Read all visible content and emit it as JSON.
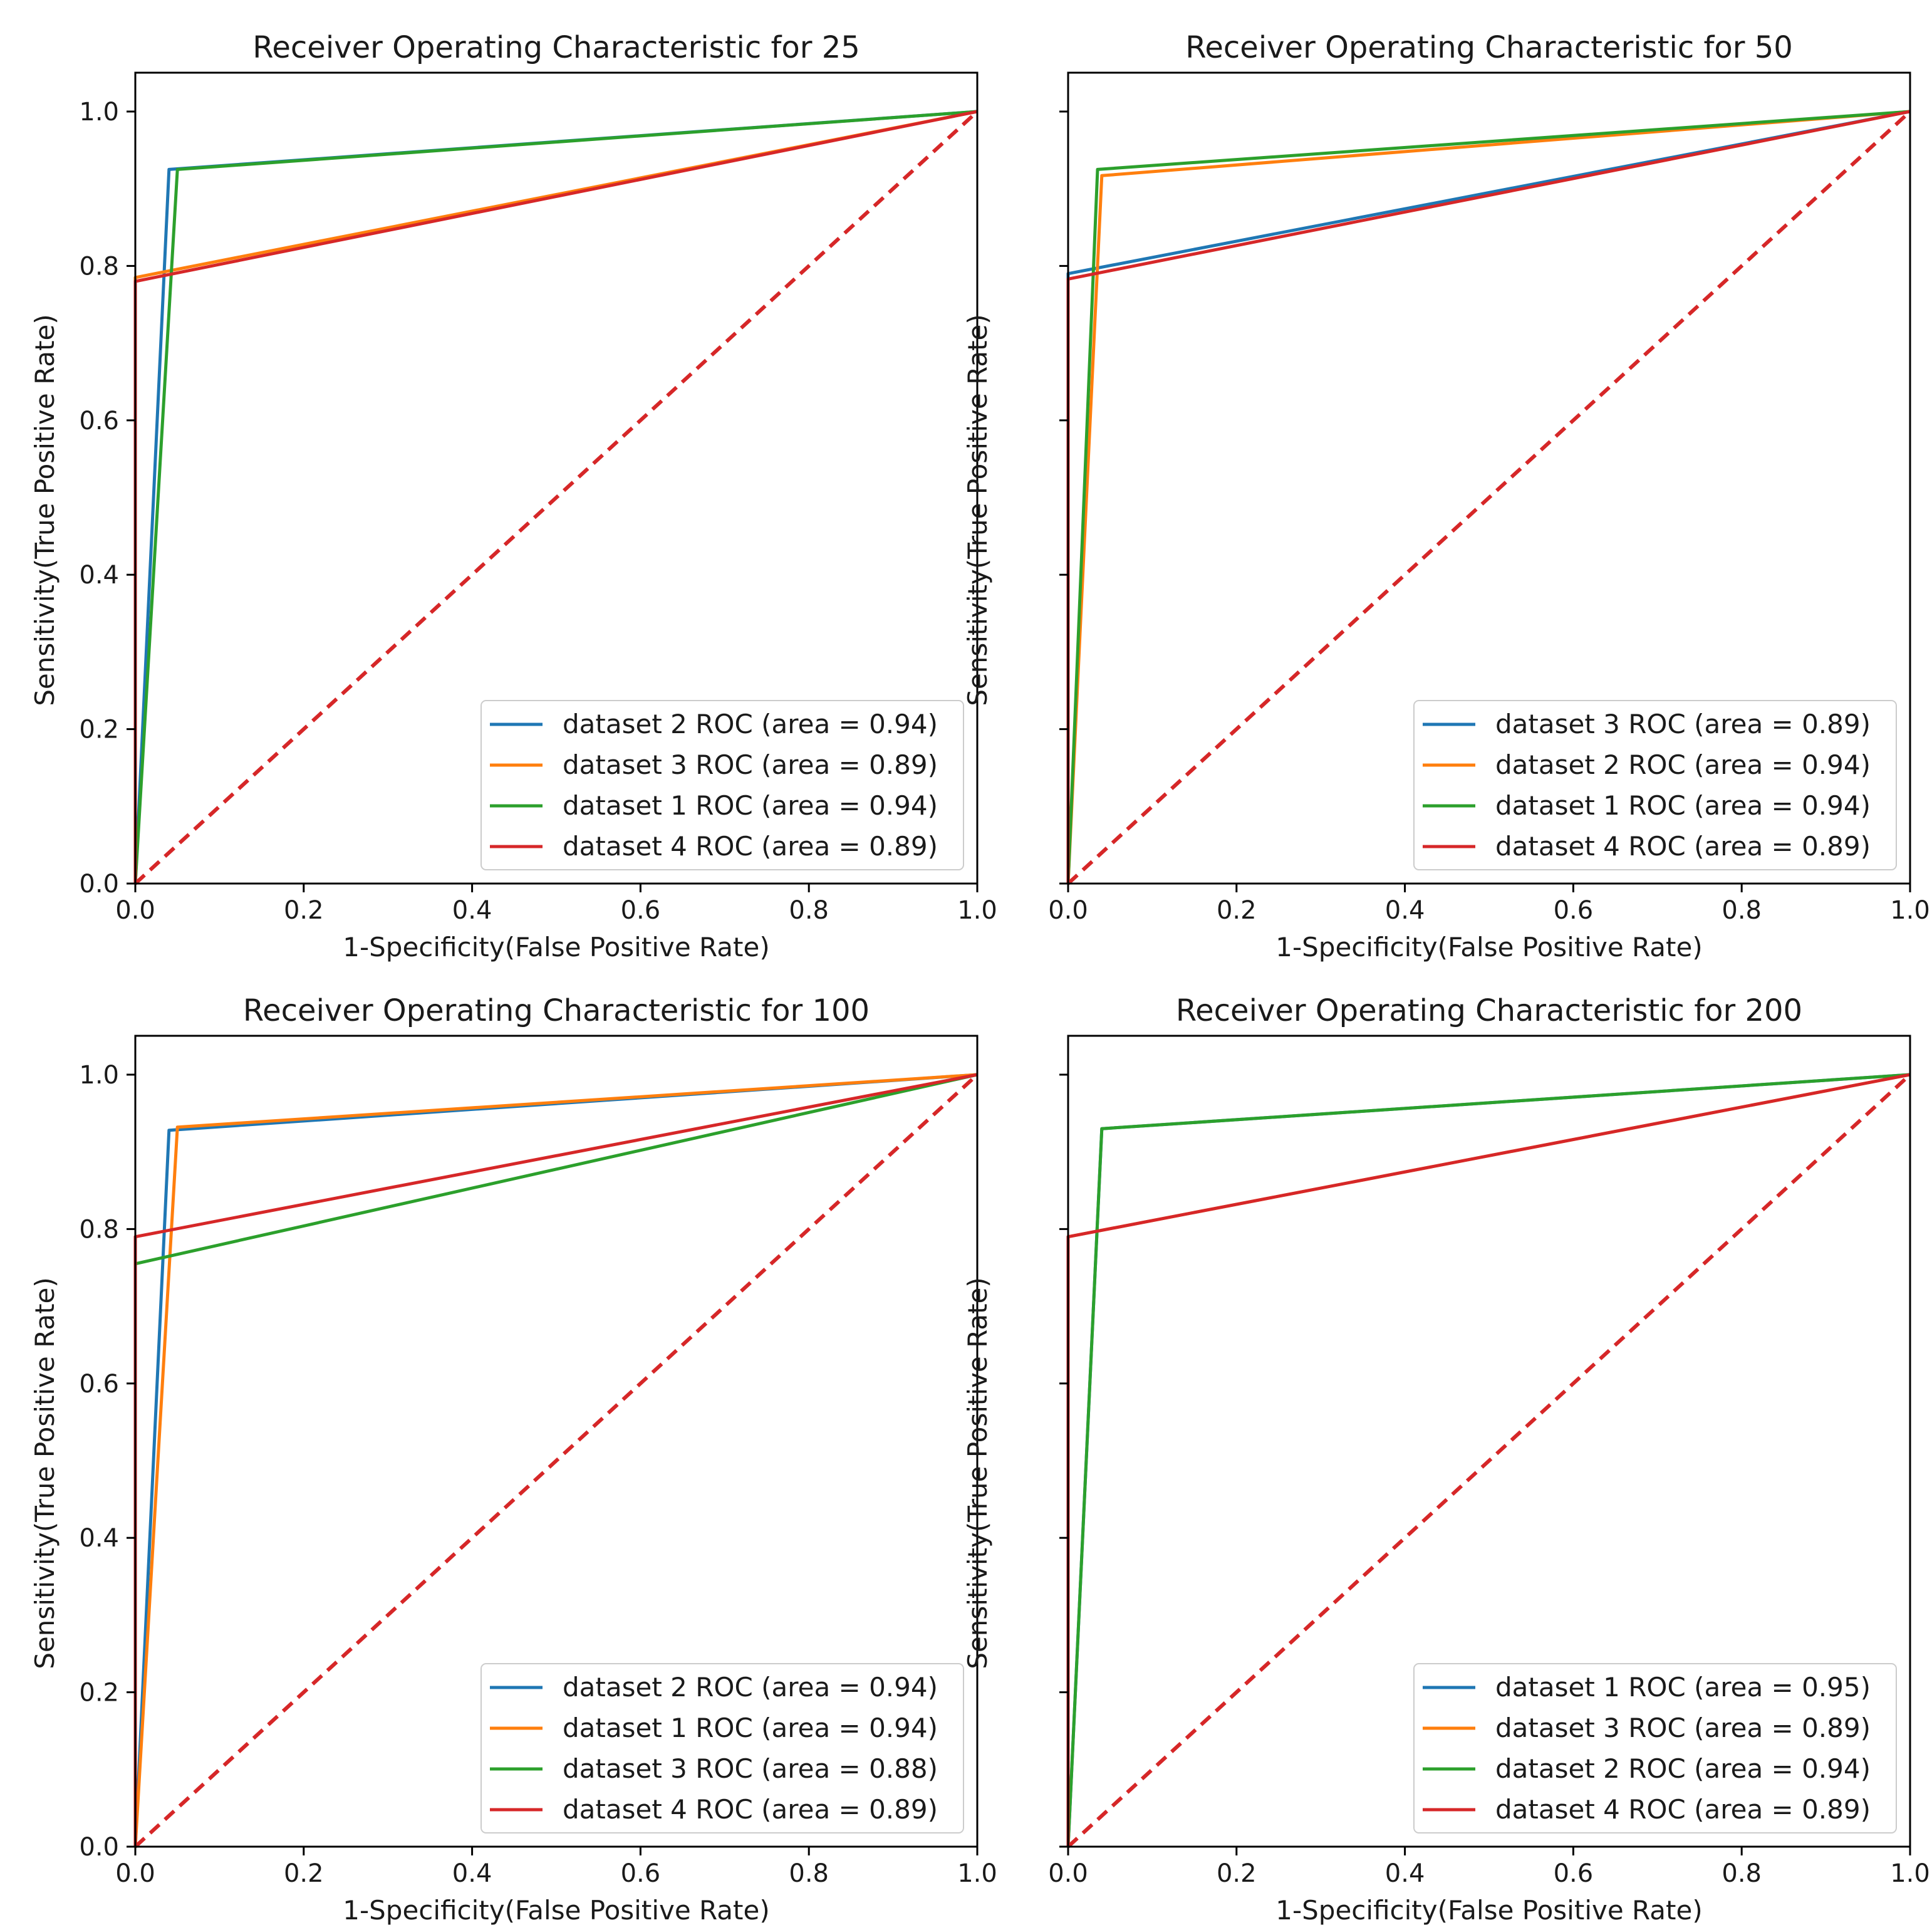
{
  "chart_data": [
    {
      "type": "line",
      "title": "Receiver Operating Characteristic for 25",
      "xlabel": "1-Specificity(False Positive Rate)",
      "ylabel": "Sensitivity(True Positive Rate)",
      "xlim": [
        0,
        1
      ],
      "ylim": [
        0,
        1
      ],
      "xticks": [
        "0.0",
        "0.2",
        "0.4",
        "0.6",
        "0.8",
        "1.0"
      ],
      "yticks": [
        "0.0",
        "0.2",
        "0.4",
        "0.6",
        "0.8",
        "1.0"
      ],
      "show_y_tick_labels": true,
      "legend_position": "lower-right",
      "series": [
        {
          "name": "dataset 2 ROC (area = 0.94)",
          "color": "#1f77b4",
          "x": [
            0,
            0.04,
            1
          ],
          "y": [
            0,
            0.925,
            1
          ]
        },
        {
          "name": "dataset 3 ROC (area = 0.89)",
          "color": "#ff7f0e",
          "x": [
            0,
            0,
            1
          ],
          "y": [
            0,
            0.785,
            1
          ]
        },
        {
          "name": "dataset 1 ROC (area = 0.94)",
          "color": "#2ca02c",
          "x": [
            0,
            0.05,
            1
          ],
          "y": [
            0,
            0.925,
            1
          ]
        },
        {
          "name": "dataset 4 ROC (area = 0.89)",
          "color": "#d62728",
          "x": [
            0,
            0,
            1
          ],
          "y": [
            0,
            0.78,
            1
          ]
        }
      ],
      "diagonal": {
        "color": "#d62728",
        "x": [
          0,
          1
        ],
        "y": [
          0,
          1
        ]
      }
    },
    {
      "type": "line",
      "title": "Receiver Operating Characteristic for 50",
      "xlabel": "1-Specificity(False Positive Rate)",
      "ylabel": "Sensitivity(True Positive Rate)",
      "xlim": [
        0,
        1
      ],
      "ylim": [
        0,
        1
      ],
      "xticks": [
        "0.0",
        "0.2",
        "0.4",
        "0.6",
        "0.8",
        "1.0"
      ],
      "yticks": [
        "0.0",
        "0.2",
        "0.4",
        "0.6",
        "0.8",
        "1.0"
      ],
      "show_y_tick_labels": false,
      "legend_position": "lower-right",
      "series": [
        {
          "name": "dataset 3 ROC (area = 0.89)",
          "color": "#1f77b4",
          "x": [
            0,
            0,
            1
          ],
          "y": [
            0,
            0.79,
            1
          ]
        },
        {
          "name": "dataset 2 ROC (area = 0.94)",
          "color": "#ff7f0e",
          "x": [
            0,
            0.04,
            1
          ],
          "y": [
            0,
            0.917,
            1
          ]
        },
        {
          "name": "dataset 1 ROC (area = 0.94)",
          "color": "#2ca02c",
          "x": [
            0,
            0.035,
            1
          ],
          "y": [
            0,
            0.925,
            1
          ]
        },
        {
          "name": "dataset 4 ROC (area = 0.89)",
          "color": "#d62728",
          "x": [
            0,
            0,
            1
          ],
          "y": [
            0,
            0.783,
            1
          ]
        }
      ],
      "diagonal": {
        "color": "#d62728",
        "x": [
          0,
          1
        ],
        "y": [
          0,
          1
        ]
      }
    },
    {
      "type": "line",
      "title": "Receiver Operating Characteristic for 100",
      "xlabel": "1-Specificity(False Positive Rate)",
      "ylabel": "Sensitivity(True Positive Rate)",
      "xlim": [
        0,
        1
      ],
      "ylim": [
        0,
        1
      ],
      "xticks": [
        "0.0",
        "0.2",
        "0.4",
        "0.6",
        "0.8",
        "1.0"
      ],
      "yticks": [
        "0.0",
        "0.2",
        "0.4",
        "0.6",
        "0.8",
        "1.0"
      ],
      "show_y_tick_labels": true,
      "legend_position": "lower-right",
      "series": [
        {
          "name": "dataset 2 ROC (area = 0.94)",
          "color": "#1f77b4",
          "x": [
            0,
            0.04,
            1
          ],
          "y": [
            0,
            0.928,
            1
          ]
        },
        {
          "name": "dataset 1 ROC (area = 0.94)",
          "color": "#ff7f0e",
          "x": [
            0,
            0.05,
            1
          ],
          "y": [
            0,
            0.932,
            1
          ]
        },
        {
          "name": "dataset 3 ROC (area = 0.88)",
          "color": "#2ca02c",
          "x": [
            0,
            0,
            1
          ],
          "y": [
            0,
            0.755,
            1
          ]
        },
        {
          "name": "dataset 4 ROC (area = 0.89)",
          "color": "#d62728",
          "x": [
            0,
            0,
            1
          ],
          "y": [
            0,
            0.79,
            1
          ]
        }
      ],
      "diagonal": {
        "color": "#d62728",
        "x": [
          0,
          1
        ],
        "y": [
          0,
          1
        ]
      }
    },
    {
      "type": "line",
      "title": "Receiver Operating Characteristic for 200",
      "xlabel": "1-Specificity(False Positive Rate)",
      "ylabel": "Sensitivity(True Positive Rate)",
      "xlim": [
        0,
        1
      ],
      "ylim": [
        0,
        1
      ],
      "xticks": [
        "0.0",
        "0.2",
        "0.4",
        "0.6",
        "0.8",
        "1.0"
      ],
      "yticks": [
        "0.0",
        "0.2",
        "0.4",
        "0.6",
        "0.8",
        "1.0"
      ],
      "show_y_tick_labels": false,
      "legend_position": "lower-right",
      "series": [
        {
          "name": "dataset 1 ROC (area = 0.95)",
          "color": "#1f77b4",
          "x": [
            0,
            0.04,
            1
          ],
          "y": [
            0,
            0.93,
            1
          ]
        },
        {
          "name": "dataset 3 ROC (area = 0.89)",
          "color": "#ff7f0e",
          "x": [
            0,
            0,
            1
          ],
          "y": [
            0,
            0.79,
            1
          ]
        },
        {
          "name": "dataset 2 ROC (area = 0.94)",
          "color": "#2ca02c",
          "x": [
            0,
            0.04,
            1
          ],
          "y": [
            0,
            0.93,
            1
          ]
        },
        {
          "name": "dataset 4 ROC (area = 0.89)",
          "color": "#d62728",
          "x": [
            0,
            0,
            1
          ],
          "y": [
            0,
            0.79,
            1
          ]
        }
      ],
      "diagonal": {
        "color": "#d62728",
        "x": [
          0,
          1
        ],
        "y": [
          0,
          1
        ]
      }
    }
  ]
}
